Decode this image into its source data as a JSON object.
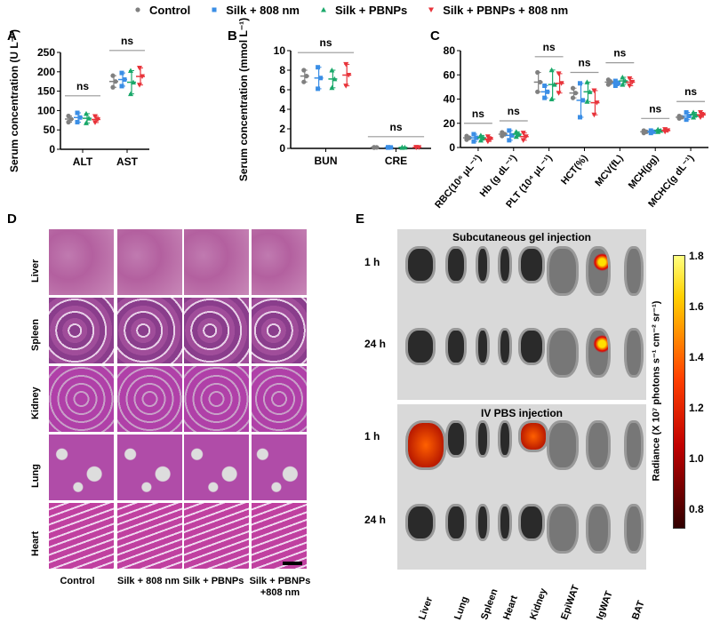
{
  "legend": {
    "items": [
      {
        "label": "Control",
        "color": "#808080",
        "marker": "circle"
      },
      {
        "label": "Silk + 808 nm",
        "color": "#3a8ee6",
        "marker": "square"
      },
      {
        "label": "Silk + PBNPs",
        "color": "#1aa86a",
        "marker": "triangle-up"
      },
      {
        "label": "Silk + PBNPs + 808 nm",
        "color": "#e8333a",
        "marker": "triangle-down"
      }
    ]
  },
  "panels": {
    "A": "A",
    "B": "B",
    "C": "C",
    "D": "D",
    "E": "E"
  },
  "chart_data": [
    {
      "panel": "A",
      "type": "scatter",
      "ylabel": "Serum concentration (U L⁻¹)",
      "ylim": [
        0,
        250
      ],
      "yticks": [
        0,
        50,
        100,
        150,
        200,
        250
      ],
      "categories": [
        "ALT",
        "AST"
      ],
      "series": [
        {
          "name": "Control",
          "mean": [
            78,
            175
          ],
          "sd": [
            8,
            15
          ]
        },
        {
          "name": "Silk + 808 nm",
          "mean": [
            82,
            180
          ],
          "sd": [
            12,
            17
          ]
        },
        {
          "name": "Silk + PBNPs",
          "mean": [
            80,
            173
          ],
          "sd": [
            12,
            30
          ]
        },
        {
          "name": "Silk + PBNPs + 808 nm",
          "mean": [
            77,
            188
          ],
          "sd": [
            8,
            22
          ]
        }
      ],
      "annotations": [
        {
          "text": "ns",
          "y": 138
        },
        {
          "text": "ns",
          "y": 255
        }
      ]
    },
    {
      "panel": "B",
      "type": "scatter",
      "ylabel": "Serum concentration (mmol L⁻¹)",
      "ylim": [
        0,
        10
      ],
      "yticks": [
        0,
        2,
        4,
        6,
        8,
        10
      ],
      "categories": [
        "BUN",
        "CRE"
      ],
      "series": [
        {
          "name": "Control",
          "mean": [
            7.4,
            0.1
          ],
          "sd": [
            0.6,
            0.02
          ]
        },
        {
          "name": "Silk + 808 nm",
          "mean": [
            7.2,
            0.1
          ],
          "sd": [
            1.1,
            0.02
          ]
        },
        {
          "name": "Silk + PBNPs",
          "mean": [
            7.1,
            0.1
          ],
          "sd": [
            0.9,
            0.02
          ]
        },
        {
          "name": "Silk + PBNPs + 808 nm",
          "mean": [
            7.5,
            0.1
          ],
          "sd": [
            1.1,
            0.02
          ]
        }
      ],
      "annotations": [
        {
          "text": "ns",
          "y": 9.8
        },
        {
          "text": "ns",
          "y": 1.2
        }
      ]
    },
    {
      "panel": "C",
      "type": "scatter",
      "ylabel": "",
      "ylim": [
        0,
        80
      ],
      "yticks": [
        0,
        20,
        40,
        60,
        80
      ],
      "categories": [
        "RBC(10⁶ μL⁻¹)",
        "Hb (g dL⁻¹)",
        "PLT (10⁴ μL⁻¹)",
        "HCT(%)",
        "MCV(fL)",
        "MCH(pg)",
        "MCHC(g dL⁻¹)"
      ],
      "series": [
        {
          "name": "Control",
          "mean": [
            8,
            11,
            54,
            45,
            54,
            13,
            25
          ],
          "sd": [
            1.5,
            1.5,
            8,
            4,
            2,
            1,
            1
          ]
        },
        {
          "name": "Silk + 808 nm",
          "mean": [
            8,
            10,
            46,
            39,
            53,
            13,
            26
          ],
          "sd": [
            3,
            4,
            5,
            14,
            2,
            1,
            3
          ]
        },
        {
          "name": "Silk + PBNPs",
          "mean": [
            8,
            11,
            52,
            46,
            55,
            14,
            27
          ],
          "sd": [
            2,
            2,
            12,
            8,
            3,
            1,
            2
          ]
        },
        {
          "name": "Silk + PBNPs + 808 nm",
          "mean": [
            7,
            9,
            53,
            37,
            54,
            14,
            27
          ],
          "sd": [
            2,
            3,
            8,
            10,
            3,
            1,
            2
          ]
        }
      ],
      "annotations": [
        {
          "text": "ns",
          "y": 20
        },
        {
          "text": "ns",
          "y": 22
        },
        {
          "text": "ns",
          "y": 75
        },
        {
          "text": "ns",
          "y": 62
        },
        {
          "text": "ns",
          "y": 70
        },
        {
          "text": "ns",
          "y": 24
        },
        {
          "text": "ns",
          "y": 38
        }
      ]
    }
  ],
  "D": {
    "rows": [
      "Liver",
      "Spleen",
      "Kidney",
      "Lung",
      "Heart"
    ],
    "cols": [
      "Control",
      "Silk + 808 nm",
      "Silk + PBNPs",
      "Silk + PBNPs +808 nm"
    ]
  },
  "E": {
    "group1": "Subcutaneous gel injection",
    "group2": "IV PBS injection",
    "times": [
      "1 h",
      "24 h",
      "1 h",
      "24 h"
    ],
    "organs": [
      "Liver",
      "Lung",
      "Spleen",
      "Heart",
      "Kidney",
      "EpiWAT",
      "IgWAT",
      "BAT"
    ],
    "colorbar": {
      "label": "Radiance (X 10⁷ photons s⁻¹ cm⁻² sr⁻¹)",
      "ticks": [
        "1.8",
        "1.6",
        "1.4",
        "1.2",
        "1.0",
        "0.8"
      ],
      "colormap": "hot"
    }
  }
}
